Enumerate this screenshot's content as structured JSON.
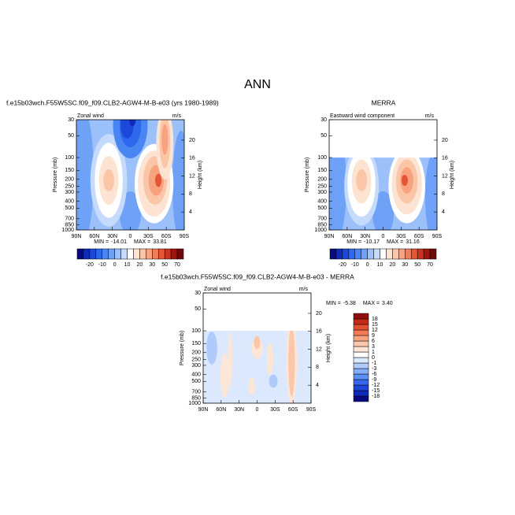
{
  "title": "ANN",
  "chart_data": [
    {
      "type": "contour",
      "title": "f.e15b03wch.F55W5SC.f09_f09.CLB2-AGW4-M-B-e03 (yrs 1980-1989)",
      "subtitle_left": "Zonal wind",
      "subtitle_right": "m/s",
      "ylabel": "Pressure (mb)",
      "y2label": "Height (km)",
      "xlim": [
        90,
        -90
      ],
      "xticks": [
        {
          "value": 90,
          "label": "90N"
        },
        {
          "value": 60,
          "label": "60N"
        },
        {
          "value": 30,
          "label": "30N"
        },
        0,
        {
          "value": -30,
          "label": "30S"
        },
        {
          "value": -60,
          "label": "60S"
        },
        {
          "value": -90,
          "label": "90S"
        }
      ],
      "ylim": [
        30,
        1000
      ],
      "ylog": true,
      "yticks": [
        30,
        50,
        100,
        150,
        200,
        250,
        300,
        400,
        500,
        700,
        850,
        1000
      ],
      "y2ticks": [
        20,
        16,
        12,
        8,
        4
      ],
      "min_label": "MIN =",
      "min": -14.01,
      "max_label": "MAX =",
      "max": 33.81,
      "colorbar": {
        "orientation": "horizontal",
        "colors": [
          "#0a0a80",
          "#0d2bb8",
          "#1b48d8",
          "#2d67eb",
          "#4a86f2",
          "#6fa2f6",
          "#9cc0f9",
          "#c6dbfc",
          "#ffffff",
          "#fde3d2",
          "#fbc5a8",
          "#f8a27f",
          "#f27d5a",
          "#e45636",
          "#c9321e",
          "#a11510",
          "#6e0a0a"
        ],
        "labels": [
          -20,
          -10,
          0,
          10,
          20,
          30,
          50,
          70
        ]
      }
    },
    {
      "type": "contour",
      "title": "MERRA",
      "subtitle_left": "Eastward wind component",
      "subtitle_right": "m/s",
      "ylabel": "Pressure (mb)",
      "y2label": "Height (km)",
      "xlim": [
        90,
        -90
      ],
      "xticks": [
        {
          "value": 90,
          "label": "90N"
        },
        {
          "value": 60,
          "label": "60N"
        },
        {
          "value": 30,
          "label": "30N"
        },
        0,
        {
          "value": -30,
          "label": "30S"
        },
        {
          "value": -60,
          "label": "60S"
        },
        {
          "value": -90,
          "label": "90S"
        }
      ],
      "ylim": [
        30,
        1000
      ],
      "ylog": true,
      "data_ylim": [
        100,
        1000
      ],
      "yticks": [
        30,
        50,
        100,
        150,
        200,
        250,
        300,
        400,
        500,
        700,
        850,
        1000
      ],
      "y2ticks": [
        20,
        16,
        12,
        8,
        4
      ],
      "min_label": "MIN =",
      "min": -10.17,
      "max_label": "MAX =",
      "max": 31.16,
      "colorbar": {
        "orientation": "horizontal",
        "colors": [
          "#0a0a80",
          "#0d2bb8",
          "#1b48d8",
          "#2d67eb",
          "#4a86f2",
          "#6fa2f6",
          "#9cc0f9",
          "#c6dbfc",
          "#ffffff",
          "#fde3d2",
          "#fbc5a8",
          "#f8a27f",
          "#f27d5a",
          "#e45636",
          "#c9321e",
          "#a11510",
          "#6e0a0a"
        ],
        "labels": [
          -20,
          -10,
          0,
          10,
          20,
          30,
          50,
          70
        ]
      }
    },
    {
      "type": "contour",
      "title": "f.e15b03wch.F55W5SC.f09_f09.CLB2-AGW4-M-B-e03 - MERRA",
      "subtitle_left": "Zonal wind",
      "subtitle_right": "m/s",
      "ylabel": "Pressure (mb)",
      "y2label": "Height (km)",
      "xlim": [
        90,
        -90
      ],
      "xticks": [
        {
          "value": 90,
          "label": "90N"
        },
        {
          "value": 60,
          "label": "60N"
        },
        {
          "value": 30,
          "label": "30N"
        },
        0,
        {
          "value": -30,
          "label": "30S"
        },
        {
          "value": -60,
          "label": "60S"
        },
        {
          "value": -90,
          "label": "90S"
        }
      ],
      "ylim": [
        30,
        1000
      ],
      "ylog": true,
      "data_ylim": [
        100,
        1000
      ],
      "yticks": [
        30,
        50,
        100,
        150,
        200,
        250,
        300,
        400,
        500,
        700,
        850,
        1000
      ],
      "y2ticks": [
        20,
        16,
        12,
        8,
        4
      ],
      "min_label": "MIN =",
      "min": -5.38,
      "max_label": "MAX =",
      "max": {
        "value": 3.4,
        "label": "3.40"
      },
      "colorbar": {
        "orientation": "vertical",
        "colors": [
          "#0a0a80",
          "#0d2bb8",
          "#1b48d8",
          "#3568ec",
          "#5b8ff4",
          "#86adf8",
          "#b0cbfb",
          "#dbe8fd",
          "#ffffff",
          "#fde6d6",
          "#fbc7ab",
          "#f8a27f",
          "#f27a55",
          "#e4512f",
          "#c42a18",
          "#8f0d0d"
        ],
        "labels": [
          -18,
          -15,
          -12,
          -9,
          -6,
          -3,
          -1,
          0,
          1,
          3,
          6,
          9,
          12,
          15,
          18
        ]
      }
    }
  ]
}
